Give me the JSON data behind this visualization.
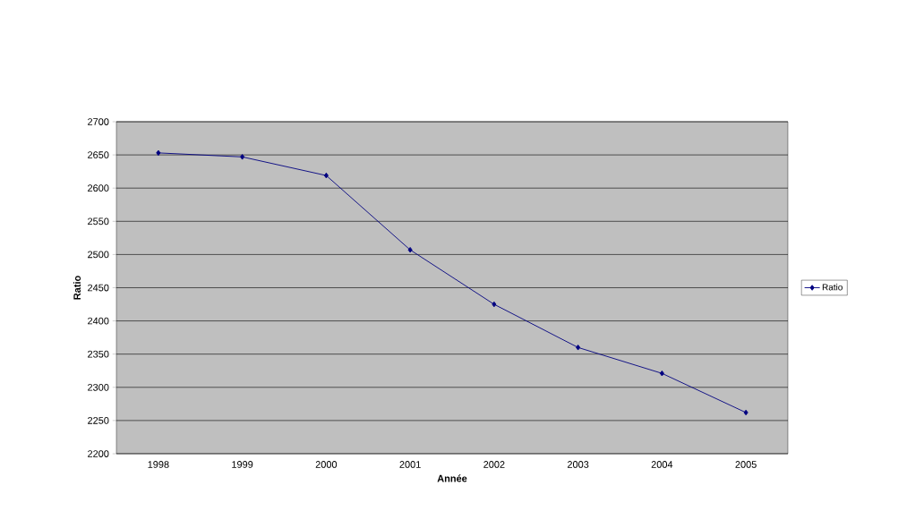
{
  "chart_data": {
    "type": "line",
    "xlabel": "Année",
    "ylabel": "Ratio",
    "categories": [
      "1998",
      "1999",
      "2000",
      "2001",
      "2002",
      "2003",
      "2004",
      "2005"
    ],
    "series": [
      {
        "name": "Ratio",
        "color": "#000080",
        "values": [
          2653,
          2647,
          2619,
          2507,
          2425,
          2360,
          2321,
          2262
        ]
      }
    ],
    "ylim": [
      2200,
      2700
    ],
    "yticks": [
      2200,
      2250,
      2300,
      2350,
      2400,
      2450,
      2500,
      2550,
      2600,
      2650,
      2700
    ],
    "grid": "y",
    "legend": "right",
    "marker": "diamond",
    "line_style": "solid"
  }
}
